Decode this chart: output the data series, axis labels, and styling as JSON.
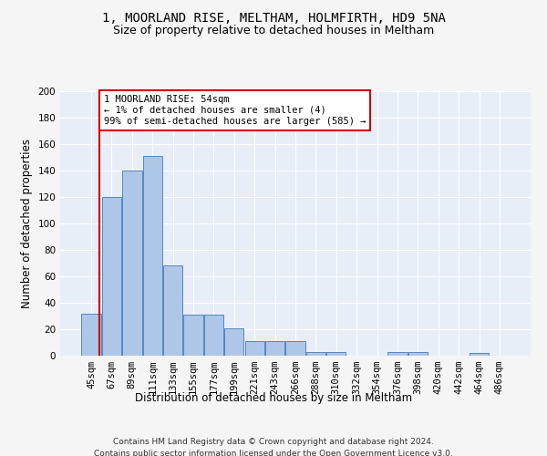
{
  "title": "1, MOORLAND RISE, MELTHAM, HOLMFIRTH, HD9 5NA",
  "subtitle": "Size of property relative to detached houses in Meltham",
  "xlabel": "Distribution of detached houses by size in Meltham",
  "ylabel": "Number of detached properties",
  "categories": [
    "45sqm",
    "67sqm",
    "89sqm",
    "111sqm",
    "133sqm",
    "155sqm",
    "177sqm",
    "199sqm",
    "221sqm",
    "243sqm",
    "266sqm",
    "288sqm",
    "310sqm",
    "332sqm",
    "354sqm",
    "376sqm",
    "398sqm",
    "420sqm",
    "442sqm",
    "464sqm",
    "486sqm"
  ],
  "values": [
    32,
    120,
    140,
    151,
    68,
    31,
    31,
    21,
    11,
    11,
    11,
    3,
    3,
    0,
    0,
    3,
    3,
    0,
    0,
    2,
    0
  ],
  "bar_color": "#aec6e8",
  "bar_edge_color": "#5588bb",
  "annotation_text_line1": "1 MOORLAND RISE: 54sqm",
  "annotation_text_line2": "← 1% of detached houses are smaller (4)",
  "annotation_text_line3": "99% of semi-detached houses are larger (585) →",
  "annotation_box_color": "#ffffff",
  "annotation_box_edge": "#cc0000",
  "vline_color": "#cc0000",
  "ylim": [
    0,
    200
  ],
  "yticks": [
    0,
    20,
    40,
    60,
    80,
    100,
    120,
    140,
    160,
    180,
    200
  ],
  "footer1": "Contains HM Land Registry data © Crown copyright and database right 2024.",
  "footer2": "Contains public sector information licensed under the Open Government Licence v3.0.",
  "title_fontsize": 10,
  "subtitle_fontsize": 9,
  "tick_fontsize": 7.5,
  "ylabel_fontsize": 8.5,
  "xlabel_fontsize": 8.5,
  "annotation_fontsize": 7.5,
  "footer_fontsize": 6.5,
  "bg_color": "#e8eef8",
  "fig_bg_color": "#f5f5f5",
  "grid_color": "#ffffff"
}
